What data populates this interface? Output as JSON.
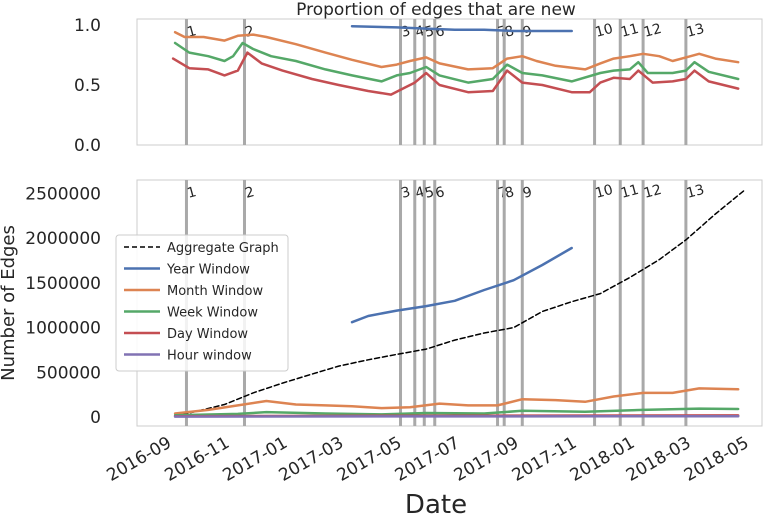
{
  "colors": {
    "year": "#4c72b0",
    "month": "#dd8452",
    "week": "#55a868",
    "day": "#c44e52",
    "hour": "#8172b3",
    "aggregate": "#000000",
    "event_line": "#a9a9a9",
    "axes_edge": "#cccccc"
  },
  "chart_data": [
    {
      "type": "line",
      "title": "Proportion of edges that are new",
      "ylim": [
        0,
        1.05
      ],
      "yticks": [
        "0.0",
        "0.5",
        "1.0"
      ],
      "ytick_values": [
        0,
        0.5,
        1.0
      ],
      "grid": false,
      "series": [
        {
          "key": "year",
          "points": [
            [
              "2017-03-15",
              0.99
            ],
            [
              "2017-05-01",
              0.98
            ],
            [
              "2017-06-01",
              0.97
            ],
            [
              "2017-07-01",
              0.96
            ],
            [
              "2017-08-01",
              0.96
            ],
            [
              "2017-09-01",
              0.95
            ],
            [
              "2017-10-01",
              0.95
            ],
            [
              "2017-11-01",
              0.95
            ]
          ]
        },
        {
          "key": "month",
          "points": [
            [
              "2016-09-10",
              0.94
            ],
            [
              "2016-09-20",
              0.9
            ],
            [
              "2016-10-10",
              0.9
            ],
            [
              "2016-11-01",
              0.87
            ],
            [
              "2016-11-15",
              0.91
            ],
            [
              "2016-12-01",
              0.92
            ],
            [
              "2016-12-15",
              0.9
            ],
            [
              "2017-01-15",
              0.84
            ],
            [
              "2017-02-15",
              0.77
            ],
            [
              "2017-03-15",
              0.71
            ],
            [
              "2017-04-15",
              0.65
            ],
            [
              "2017-05-01",
              0.67
            ],
            [
              "2017-05-15",
              0.7
            ],
            [
              "2017-06-01",
              0.73
            ],
            [
              "2017-06-15",
              0.68
            ],
            [
              "2017-07-15",
              0.63
            ],
            [
              "2017-08-10",
              0.64
            ],
            [
              "2017-08-25",
              0.72
            ],
            [
              "2017-09-10",
              0.74
            ],
            [
              "2017-09-25",
              0.7
            ],
            [
              "2017-10-15",
              0.66
            ],
            [
              "2017-11-15",
              0.63
            ],
            [
              "2017-12-01",
              0.68
            ],
            [
              "2017-12-15",
              0.72
            ],
            [
              "2018-01-01",
              0.74
            ],
            [
              "2018-01-15",
              0.76
            ],
            [
              "2018-02-01",
              0.74
            ],
            [
              "2018-02-15",
              0.7
            ],
            [
              "2018-03-01",
              0.73
            ],
            [
              "2018-03-15",
              0.76
            ],
            [
              "2018-04-01",
              0.72
            ],
            [
              "2018-04-25",
              0.69
            ]
          ]
        },
        {
          "key": "week",
          "points": [
            [
              "2016-09-10",
              0.85
            ],
            [
              "2016-09-25",
              0.77
            ],
            [
              "2016-10-15",
              0.74
            ],
            [
              "2016-11-01",
              0.7
            ],
            [
              "2016-11-10",
              0.74
            ],
            [
              "2016-11-20",
              0.85
            ],
            [
              "2016-12-01",
              0.8
            ],
            [
              "2016-12-20",
              0.74
            ],
            [
              "2017-01-15",
              0.7
            ],
            [
              "2017-02-15",
              0.63
            ],
            [
              "2017-03-15",
              0.58
            ],
            [
              "2017-04-15",
              0.53
            ],
            [
              "2017-05-01",
              0.58
            ],
            [
              "2017-05-15",
              0.6
            ],
            [
              "2017-06-01",
              0.65
            ],
            [
              "2017-06-15",
              0.58
            ],
            [
              "2017-07-15",
              0.52
            ],
            [
              "2017-08-10",
              0.55
            ],
            [
              "2017-08-25",
              0.67
            ],
            [
              "2017-09-10",
              0.6
            ],
            [
              "2017-10-01",
              0.58
            ],
            [
              "2017-11-01",
              0.53
            ],
            [
              "2017-12-01",
              0.6
            ],
            [
              "2017-12-15",
              0.62
            ],
            [
              "2018-01-01",
              0.63
            ],
            [
              "2018-01-10",
              0.69
            ],
            [
              "2018-01-20",
              0.6
            ],
            [
              "2018-02-15",
              0.6
            ],
            [
              "2018-03-01",
              0.62
            ],
            [
              "2018-03-10",
              0.69
            ],
            [
              "2018-03-25",
              0.61
            ],
            [
              "2018-04-25",
              0.55
            ]
          ]
        },
        {
          "key": "day",
          "points": [
            [
              "2016-09-08",
              0.72
            ],
            [
              "2016-09-25",
              0.64
            ],
            [
              "2016-10-15",
              0.63
            ],
            [
              "2016-11-01",
              0.58
            ],
            [
              "2016-11-15",
              0.62
            ],
            [
              "2016-11-25",
              0.77
            ],
            [
              "2016-12-10",
              0.68
            ],
            [
              "2017-01-01",
              0.62
            ],
            [
              "2017-02-01",
              0.55
            ],
            [
              "2017-03-01",
              0.5
            ],
            [
              "2017-04-01",
              0.45
            ],
            [
              "2017-04-25",
              0.42
            ],
            [
              "2017-05-10",
              0.48
            ],
            [
              "2017-05-20",
              0.52
            ],
            [
              "2017-06-01",
              0.6
            ],
            [
              "2017-06-15",
              0.5
            ],
            [
              "2017-07-15",
              0.44
            ],
            [
              "2017-08-10",
              0.45
            ],
            [
              "2017-08-25",
              0.62
            ],
            [
              "2017-09-10",
              0.52
            ],
            [
              "2017-10-01",
              0.5
            ],
            [
              "2017-11-01",
              0.44
            ],
            [
              "2017-11-20",
              0.44
            ],
            [
              "2017-12-01",
              0.52
            ],
            [
              "2017-12-15",
              0.56
            ],
            [
              "2018-01-01",
              0.55
            ],
            [
              "2018-01-10",
              0.62
            ],
            [
              "2018-01-25",
              0.52
            ],
            [
              "2018-02-15",
              0.53
            ],
            [
              "2018-03-01",
              0.55
            ],
            [
              "2018-03-10",
              0.62
            ],
            [
              "2018-03-25",
              0.53
            ],
            [
              "2018-04-25",
              0.47
            ]
          ]
        }
      ]
    },
    {
      "type": "line",
      "title": "",
      "xlabel": "Date",
      "ylabel": "Number of Edges",
      "ylim": [
        -100000,
        2650000
      ],
      "yticks": [
        "0",
        "500000",
        "1000000",
        "1500000",
        "2000000",
        "2500000"
      ],
      "ytick_values": [
        0,
        500000,
        1000000,
        1500000,
        2000000,
        2500000
      ],
      "xticks": [
        "2016-09",
        "2016-11",
        "2017-01",
        "2017-03",
        "2017-05",
        "2017-07",
        "2017-09",
        "2017-11",
        "2018-01",
        "2018-03",
        "2018-05"
      ],
      "xtick_values": [
        "2016-09-01",
        "2016-11-01",
        "2017-01-01",
        "2017-03-01",
        "2017-05-01",
        "2017-07-01",
        "2017-09-01",
        "2017-11-01",
        "2018-01-01",
        "2018-03-01",
        "2018-05-01"
      ],
      "xlim": [
        "2016-08-01",
        "2018-05-20"
      ],
      "grid": false,
      "legend_placement": "center-left",
      "series": [
        {
          "key": "aggregate",
          "name": "Aggregate Graph",
          "style": "dashed",
          "points": [
            [
              "2016-09-10",
              10000
            ],
            [
              "2016-10-01",
              60000
            ],
            [
              "2016-11-01",
              140000
            ],
            [
              "2016-12-01",
              270000
            ],
            [
              "2017-01-01",
              380000
            ],
            [
              "2017-02-01",
              480000
            ],
            [
              "2017-03-01",
              570000
            ],
            [
              "2017-04-01",
              640000
            ],
            [
              "2017-05-01",
              700000
            ],
            [
              "2017-06-01",
              760000
            ],
            [
              "2017-07-01",
              860000
            ],
            [
              "2017-08-01",
              940000
            ],
            [
              "2017-09-01",
              1000000
            ],
            [
              "2017-10-01",
              1180000
            ],
            [
              "2017-11-01",
              1290000
            ],
            [
              "2017-12-01",
              1380000
            ],
            [
              "2018-01-01",
              1560000
            ],
            [
              "2018-02-01",
              1760000
            ],
            [
              "2018-03-01",
              1980000
            ],
            [
              "2018-04-01",
              2270000
            ],
            [
              "2018-05-01",
              2530000
            ]
          ]
        },
        {
          "key": "year",
          "name": "Year Window",
          "style": "solid",
          "points": [
            [
              "2017-03-15",
              1060000
            ],
            [
              "2017-04-01",
              1130000
            ],
            [
              "2017-05-01",
              1190000
            ],
            [
              "2017-06-01",
              1240000
            ],
            [
              "2017-07-01",
              1300000
            ],
            [
              "2017-08-01",
              1420000
            ],
            [
              "2017-09-01",
              1530000
            ],
            [
              "2017-10-01",
              1700000
            ],
            [
              "2017-11-01",
              1890000
            ]
          ]
        },
        {
          "key": "month",
          "name": "Month Window",
          "style": "solid",
          "points": [
            [
              "2016-09-10",
              40000
            ],
            [
              "2016-10-15",
              80000
            ],
            [
              "2016-11-15",
              130000
            ],
            [
              "2016-12-15",
              180000
            ],
            [
              "2017-01-15",
              140000
            ],
            [
              "2017-02-15",
              130000
            ],
            [
              "2017-03-15",
              120000
            ],
            [
              "2017-04-15",
              100000
            ],
            [
              "2017-05-15",
              110000
            ],
            [
              "2017-06-15",
              150000
            ],
            [
              "2017-07-15",
              130000
            ],
            [
              "2017-08-15",
              130000
            ],
            [
              "2017-09-10",
              200000
            ],
            [
              "2017-10-15",
              190000
            ],
            [
              "2017-11-15",
              170000
            ],
            [
              "2017-12-15",
              230000
            ],
            [
              "2018-01-15",
              270000
            ],
            [
              "2018-02-15",
              270000
            ],
            [
              "2018-03-15",
              320000
            ],
            [
              "2018-04-25",
              310000
            ]
          ]
        },
        {
          "key": "week",
          "name": "Week Window",
          "style": "solid",
          "points": [
            [
              "2016-09-10",
              20000
            ],
            [
              "2016-11-15",
              35000
            ],
            [
              "2016-12-15",
              55000
            ],
            [
              "2017-02-15",
              40000
            ],
            [
              "2017-04-15",
              30000
            ],
            [
              "2017-06-01",
              45000
            ],
            [
              "2017-08-01",
              40000
            ],
            [
              "2017-09-10",
              70000
            ],
            [
              "2017-11-15",
              60000
            ],
            [
              "2018-01-15",
              80000
            ],
            [
              "2018-03-15",
              95000
            ],
            [
              "2018-04-25",
              90000
            ]
          ]
        },
        {
          "key": "day",
          "name": "Day Window",
          "style": "solid",
          "points": [
            [
              "2016-09-10",
              10000
            ],
            [
              "2017-06-01",
              15000
            ],
            [
              "2018-04-25",
              18000
            ]
          ]
        },
        {
          "key": "hour",
          "name": "Hour window",
          "style": "solid",
          "points": [
            [
              "2016-09-10",
              5000
            ],
            [
              "2017-06-01",
              7000
            ],
            [
              "2018-04-25",
              9000
            ]
          ]
        }
      ]
    }
  ],
  "events": [
    {
      "label": "1",
      "date": "2016-09-22"
    },
    {
      "label": "2",
      "date": "2016-11-22"
    },
    {
      "label": "3",
      "date": "2017-05-05"
    },
    {
      "label": "4",
      "date": "2017-05-20"
    },
    {
      "label": "5",
      "date": "2017-05-30"
    },
    {
      "label": "6",
      "date": "2017-06-10"
    },
    {
      "label": "7",
      "date": "2017-08-15"
    },
    {
      "label": "8",
      "date": "2017-08-22"
    },
    {
      "label": "9",
      "date": "2017-09-10"
    },
    {
      "label": "10",
      "date": "2017-11-25"
    },
    {
      "label": "11",
      "date": "2017-12-22"
    },
    {
      "label": "12",
      "date": "2018-01-15"
    },
    {
      "label": "13",
      "date": "2018-03-01"
    }
  ]
}
